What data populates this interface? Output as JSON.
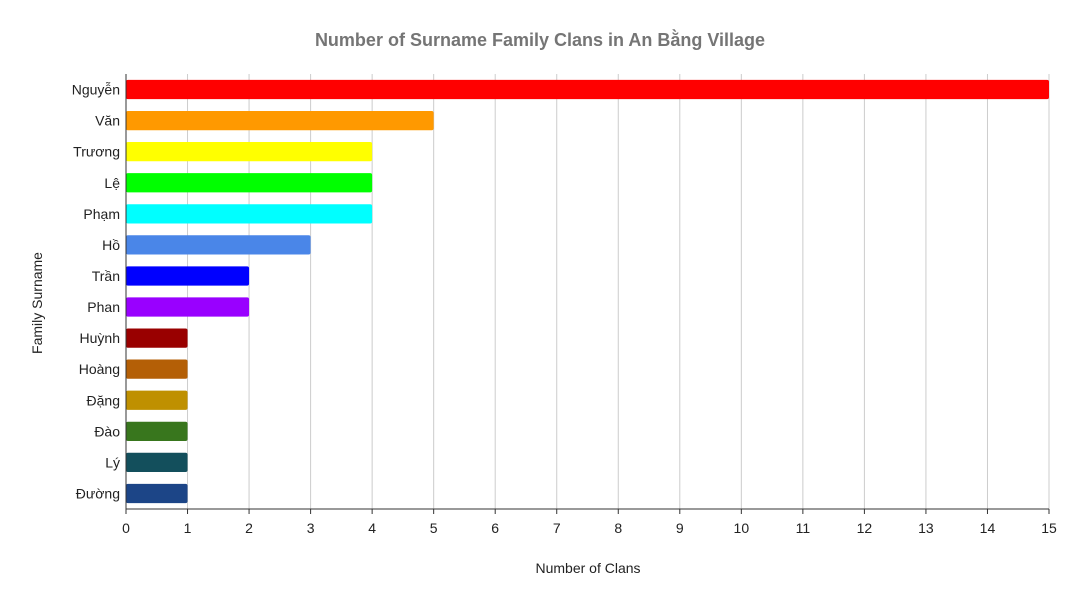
{
  "chart_data": {
    "type": "bar",
    "orientation": "horizontal",
    "title": "Number of Surname Family Clans in An Bằng Village",
    "xlabel": "Number of Clans",
    "ylabel": "Family Surname",
    "xlim": [
      0,
      15
    ],
    "x_ticks": [
      "0",
      "1",
      "2",
      "3",
      "4",
      "5",
      "6",
      "7",
      "8",
      "9",
      "10",
      "11",
      "12",
      "13",
      "14",
      "15"
    ],
    "grid": true,
    "legend": "none",
    "categories": [
      "Nguyễn",
      "Văn",
      "Trương",
      "Lệ",
      "Phạm",
      "Hồ",
      "Trần",
      "Phan",
      "Huỳnh",
      "Hoàng",
      "Đặng",
      "Đào",
      "Lý",
      "Đường"
    ],
    "values": [
      15,
      5,
      4,
      4,
      4,
      3,
      2,
      2,
      1,
      1,
      1,
      1,
      1,
      1
    ],
    "colors": [
      "#ff0000",
      "#ff9900",
      "#ffff00",
      "#00ff00",
      "#00ffff",
      "#4a86e8",
      "#0000ff",
      "#9900ff",
      "#990000",
      "#b45f06",
      "#bf9000",
      "#38761d",
      "#134f5c",
      "#1c4587"
    ]
  }
}
